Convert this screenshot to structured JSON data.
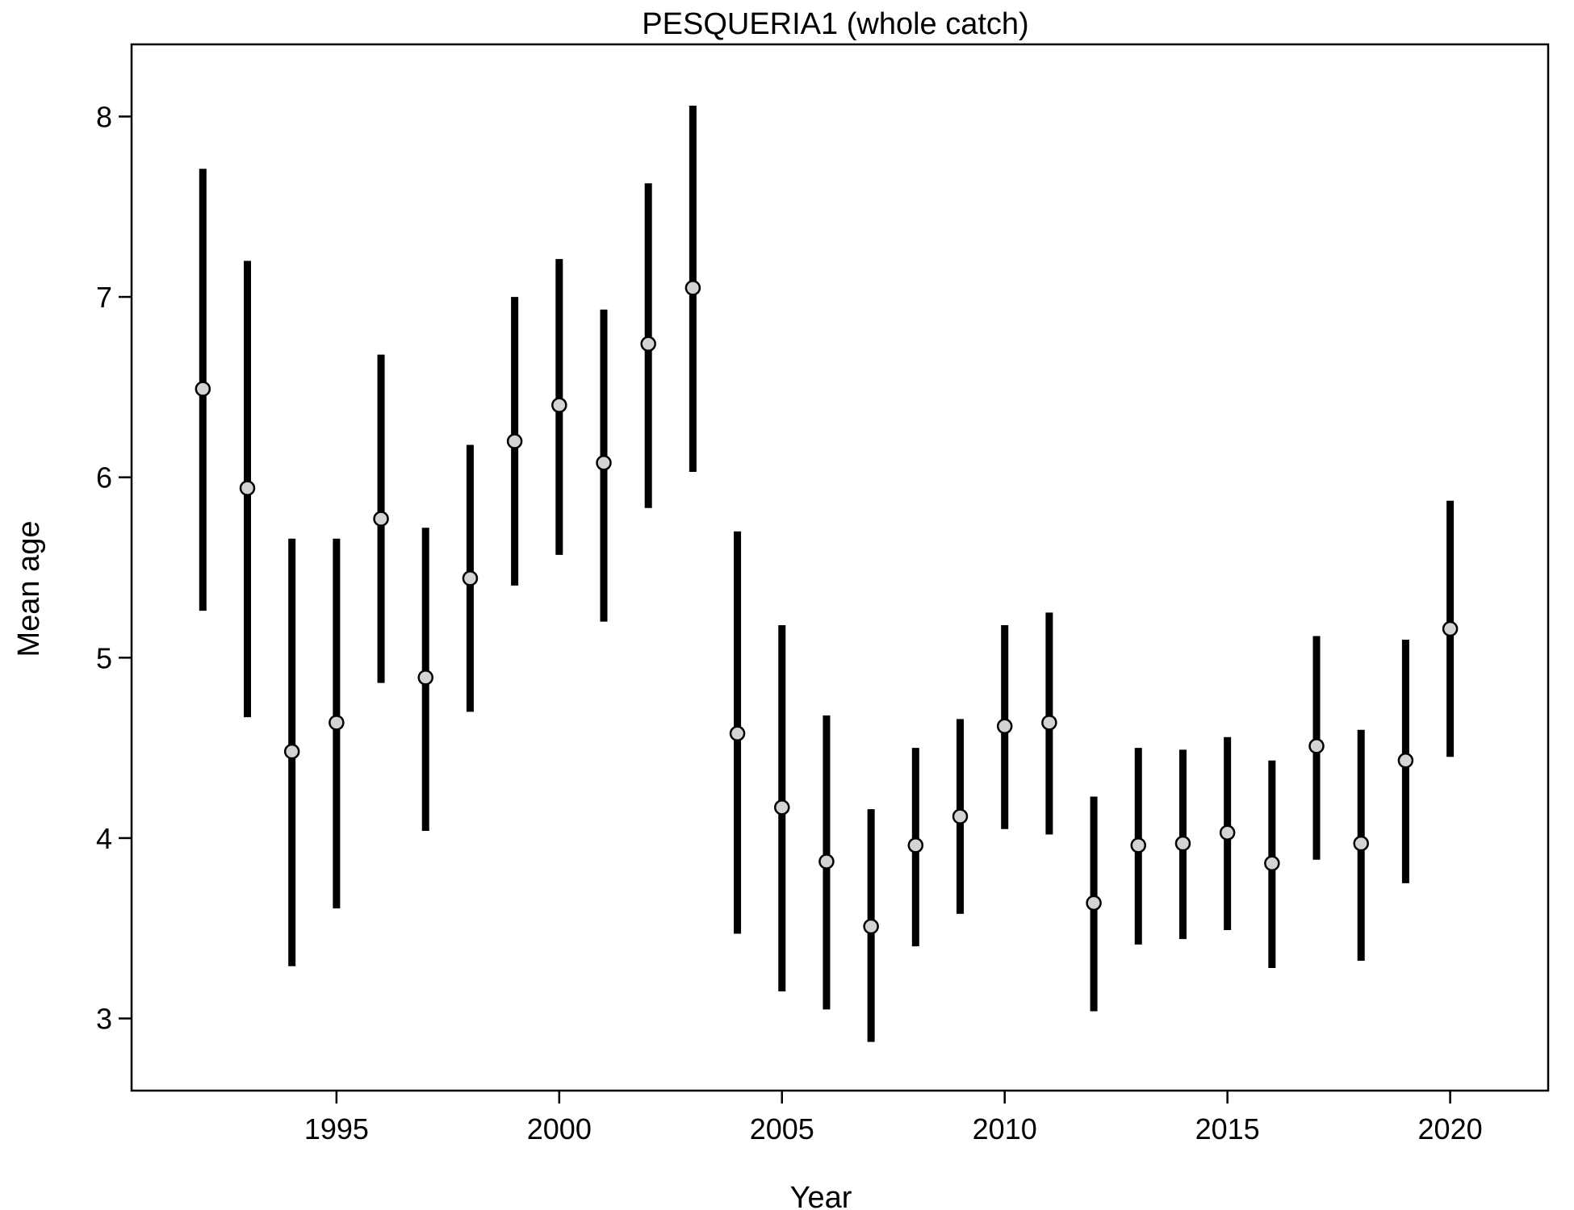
{
  "chart_data": {
    "type": "scatter",
    "title": "PESQUERIA1 (whole catch)",
    "xlabel": "Year",
    "ylabel": "Mean age",
    "xlim": [
      1990.4,
      2022.2
    ],
    "ylim": [
      2.6,
      8.4
    ],
    "xticks": [
      1995,
      2000,
      2005,
      2010,
      2015,
      2020
    ],
    "yticks": [
      3,
      4,
      5,
      6,
      7,
      8
    ],
    "grid": false,
    "legend": "none",
    "colors": {
      "point_fill": "#d3d3d3",
      "bar": "#000000"
    },
    "x": [
      1992,
      1993,
      1994,
      1995,
      1996,
      1997,
      1998,
      1999,
      2000,
      2001,
      2002,
      2003,
      2004,
      2005,
      2006,
      2007,
      2008,
      2009,
      2010,
      2011,
      2012,
      2013,
      2014,
      2015,
      2016,
      2017,
      2018,
      2019,
      2020
    ],
    "y": [
      6.49,
      5.94,
      4.48,
      4.64,
      5.77,
      4.89,
      5.44,
      6.2,
      6.4,
      6.08,
      6.74,
      7.05,
      4.58,
      4.17,
      3.87,
      3.51,
      3.96,
      4.12,
      4.62,
      4.64,
      3.64,
      3.96,
      3.97,
      4.03,
      3.86,
      4.51,
      3.97,
      4.43,
      5.16
    ],
    "lower": [
      5.26,
      4.67,
      3.29,
      3.61,
      4.86,
      4.04,
      4.7,
      5.4,
      5.57,
      5.2,
      5.83,
      6.03,
      3.47,
      3.15,
      3.05,
      2.87,
      3.4,
      3.58,
      4.05,
      4.02,
      3.04,
      3.41,
      3.44,
      3.49,
      3.28,
      3.88,
      3.32,
      3.75,
      4.45
    ],
    "upper": [
      7.71,
      7.2,
      5.66,
      5.66,
      6.68,
      5.72,
      6.18,
      7.0,
      7.21,
      6.93,
      7.63,
      8.06,
      5.7,
      5.18,
      4.68,
      4.16,
      4.5,
      4.66,
      5.18,
      5.25,
      4.23,
      4.5,
      4.49,
      4.56,
      4.43,
      5.12,
      4.6,
      5.1,
      5.87
    ]
  }
}
